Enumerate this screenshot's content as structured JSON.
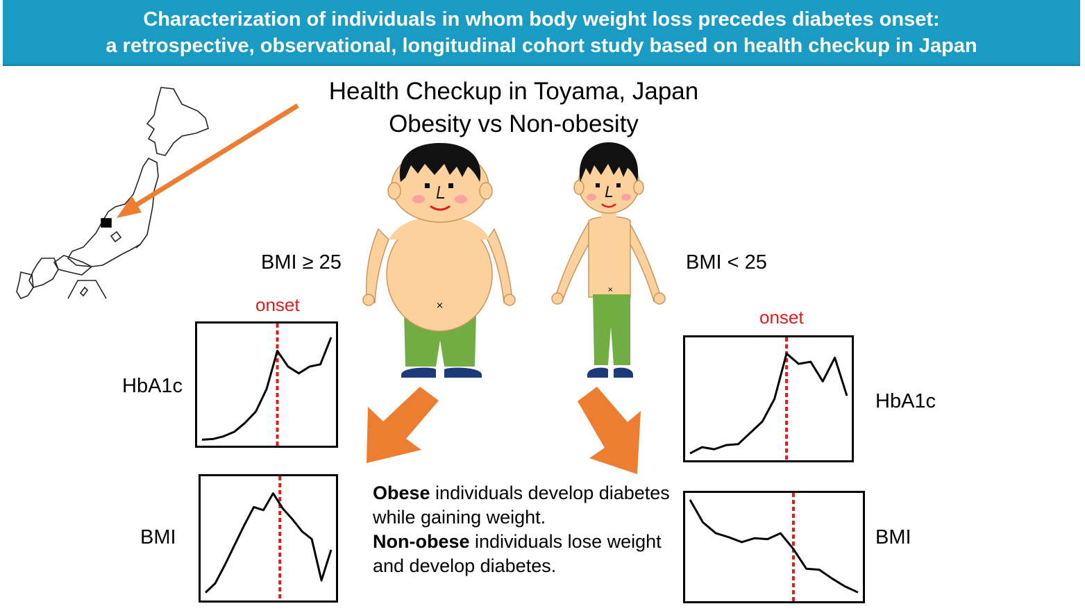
{
  "banner": {
    "line1": "Characterization of individuals in whom body weight loss precedes diabetes onset:",
    "line2": "a retrospective, observational, longitudinal cohort study based on health checkup in Japan"
  },
  "heading": {
    "line1": "Health Checkup in Toyama, Japan",
    "line2": "Obesity vs Non-obesity"
  },
  "groups": {
    "obese_label": "BMI ≥ 25",
    "nonobese_label": "BMI < 25"
  },
  "labels": {
    "onset": "onset",
    "hba1c": "HbA1c",
    "bmi": "BMI"
  },
  "summary": {
    "obese_bold": "Obese",
    "obese_rest": " individuals develop diabetes while gaining weight.",
    "nonobese_bold": "Non-obese",
    "nonobese_rest": " individuals lose weight and develop diabetes."
  },
  "colors": {
    "banner": "#1a9bc4",
    "arrow": "#ed7d31",
    "onset_line": "#e01c1c",
    "skin": "#fcd19c",
    "pants": "#72ad44",
    "shoes": "#1d3a78",
    "hair": "#111111"
  },
  "chart_data": [
    {
      "type": "line",
      "id": "obese-hba1c",
      "values": [
        0.5,
        0.8,
        2,
        4,
        8,
        13,
        23,
        40,
        33,
        30,
        33,
        34,
        46
      ],
      "onset_index": 7,
      "ylim": [
        0,
        50
      ]
    },
    {
      "type": "line",
      "id": "obese-bmi",
      "values": [
        2,
        8,
        20,
        33,
        46,
        58,
        56,
        67,
        57,
        50,
        42,
        37,
        10,
        30
      ],
      "onset_index": 7.7,
      "ylim": [
        0,
        75
      ]
    },
    {
      "type": "line",
      "id": "nonobese-hba1c",
      "values": [
        2,
        8,
        6,
        10,
        11,
        22,
        33,
        55,
        99,
        89,
        91,
        72,
        95,
        58
      ],
      "onset_index": 8,
      "ylim": [
        0,
        110
      ]
    },
    {
      "type": "line",
      "id": "nonobese-bmi",
      "values": [
        98,
        75,
        64,
        60,
        55,
        59,
        58,
        64,
        48,
        28,
        27,
        18,
        10,
        4
      ],
      "onset_index": 8,
      "ylim": [
        0,
        100
      ]
    }
  ]
}
